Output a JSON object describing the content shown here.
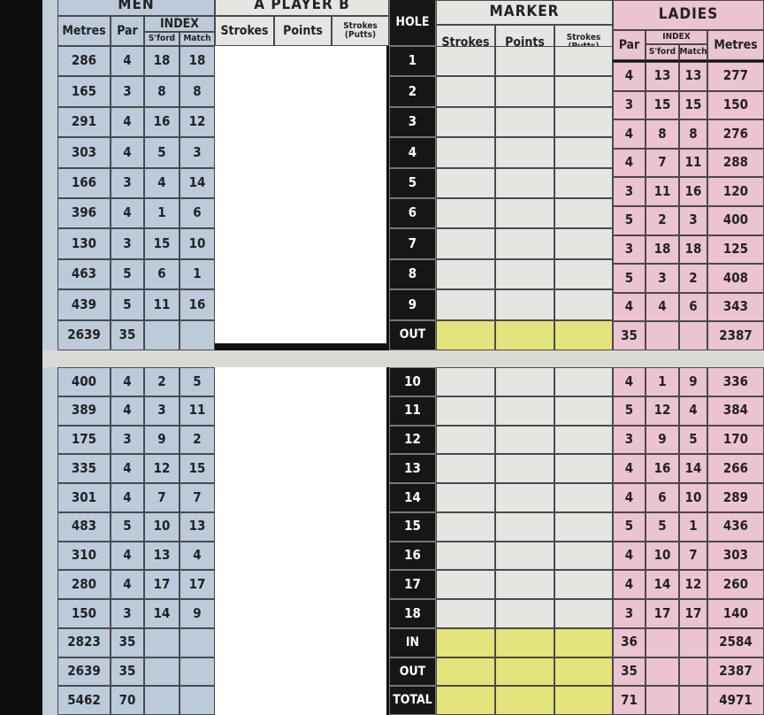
{
  "front": {
    "men": {
      "title": "MEN",
      "index": "INDEX",
      "columns": [
        "Metres",
        "Par",
        "S'ford",
        "Match"
      ]
    },
    "player": {
      "title": "A PLAYER B",
      "columns": [
        "Strokes",
        "Points",
        "Strokes (Putts)"
      ]
    },
    "hole_header": "HOLE",
    "marker": {
      "title": "MARKER",
      "columns": [
        "Strokes",
        "Points",
        "Strokes (Putts)"
      ]
    },
    "ladies": {
      "title": "LADIES",
      "index": "INDEX",
      "columns": [
        "Par",
        "S'ford",
        "Match",
        "Metres"
      ]
    },
    "rows": [
      {
        "hole": 1,
        "men": [
          286,
          4,
          18,
          18
        ],
        "ladies": [
          4,
          13,
          13,
          277
        ]
      },
      {
        "hole": 2,
        "men": [
          165,
          3,
          8,
          8
        ],
        "ladies": [
          3,
          15,
          15,
          150
        ]
      },
      {
        "hole": 3,
        "men": [
          291,
          4,
          16,
          12
        ],
        "ladies": [
          4,
          8,
          8,
          276
        ]
      },
      {
        "hole": 4,
        "men": [
          303,
          4,
          5,
          3
        ],
        "ladies": [
          4,
          7,
          11,
          288
        ]
      },
      {
        "hole": 5,
        "men": [
          166,
          3,
          4,
          14
        ],
        "ladies": [
          3,
          11,
          16,
          120
        ]
      },
      {
        "hole": 6,
        "men": [
          396,
          4,
          1,
          6
        ],
        "ladies": [
          5,
          2,
          3,
          400
        ]
      },
      {
        "hole": 7,
        "men": [
          130,
          3,
          15,
          10
        ],
        "ladies": [
          3,
          18,
          18,
          125
        ]
      },
      {
        "hole": 8,
        "men": [
          463,
          5,
          6,
          1
        ],
        "ladies": [
          5,
          3,
          2,
          408
        ]
      },
      {
        "hole": 9,
        "men": [
          439,
          5,
          11,
          16
        ],
        "ladies": [
          4,
          4,
          6,
          343
        ]
      }
    ],
    "totals": [
      {
        "label": "OUT",
        "men": [
          2639,
          35
        ],
        "ladies": [
          35,
          2387
        ]
      }
    ]
  },
  "back": {
    "rows": [
      {
        "hole": 10,
        "men": [
          400,
          4,
          2,
          5
        ],
        "ladies": [
          4,
          1,
          9,
          336
        ]
      },
      {
        "hole": 11,
        "men": [
          389,
          4,
          3,
          11
        ],
        "ladies": [
          5,
          12,
          4,
          384
        ]
      },
      {
        "hole": 12,
        "men": [
          175,
          3,
          9,
          2
        ],
        "ladies": [
          3,
          9,
          5,
          170
        ]
      },
      {
        "hole": 13,
        "men": [
          335,
          4,
          12,
          15
        ],
        "ladies": [
          4,
          16,
          14,
          266
        ]
      },
      {
        "hole": 14,
        "men": [
          301,
          4,
          7,
          7
        ],
        "ladies": [
          4,
          6,
          10,
          289
        ]
      },
      {
        "hole": 15,
        "men": [
          483,
          5,
          10,
          13
        ],
        "ladies": [
          5,
          5,
          1,
          436
        ]
      },
      {
        "hole": 16,
        "men": [
          310,
          4,
          13,
          4
        ],
        "ladies": [
          4,
          10,
          7,
          303
        ]
      },
      {
        "hole": 17,
        "men": [
          280,
          4,
          17,
          17
        ],
        "ladies": [
          4,
          14,
          12,
          260
        ]
      },
      {
        "hole": 18,
        "men": [
          150,
          3,
          14,
          9
        ],
        "ladies": [
          3,
          17,
          17,
          140
        ]
      }
    ],
    "totals": [
      {
        "label": "IN",
        "men": [
          2823,
          35
        ],
        "ladies": [
          36,
          2584
        ]
      },
      {
        "label": "OUT",
        "men": [
          2639,
          35
        ],
        "ladies": [
          35,
          2387
        ]
      },
      {
        "label": "TOTAL",
        "men": [
          5462,
          70
        ],
        "ladies": [
          71,
          4971
        ]
      }
    ]
  }
}
